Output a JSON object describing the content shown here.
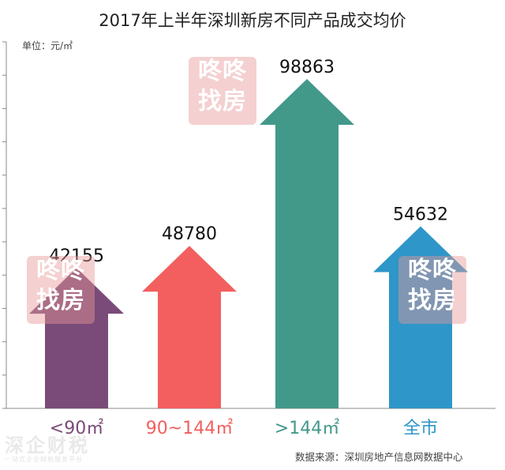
{
  "title": "2017年上半年深圳新房不同产品成交均价",
  "unit_label": "单位：元/㎡",
  "source": "数据来源：深圳房地产信息网数据中心",
  "watermark": {
    "line1": "咚咚",
    "line2": "找房"
  },
  "footer_watermark": {
    "line1": "深企财税",
    "line2": "一站式企业财税服务平台"
  },
  "chart_data": {
    "type": "bar",
    "title": "2017年上半年深圳新房不同产品成交均价",
    "ylabel": "单位：元/㎡",
    "categories": [
      "<90㎡",
      "90~144㎡",
      ">144㎡",
      "全市"
    ],
    "values": [
      42155,
      48780,
      98863,
      54632
    ],
    "value_labels": [
      "42155",
      "48780",
      "98863",
      "54632"
    ],
    "colors": [
      "#7a4b78",
      "#f25f5e",
      "#42998a",
      "#2e96c8"
    ],
    "ylim": [
      0,
      110000
    ],
    "grid": false
  }
}
